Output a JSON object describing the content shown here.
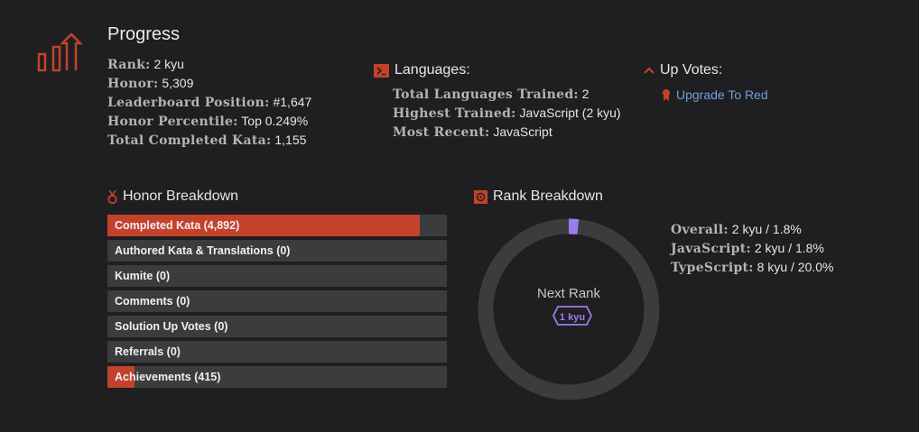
{
  "progress": {
    "title": "Progress",
    "rank_label": "Rank:",
    "rank_value": "2 kyu",
    "honor_label": "Honor:",
    "honor_value": "5,309",
    "leaderboard_label": "Leaderboard Position:",
    "leaderboard_value": "#1,647",
    "percentile_label": "Honor Percentile:",
    "percentile_value": "Top 0.249%",
    "completed_label": "Total Completed Kata:",
    "completed_value": "1,155"
  },
  "languages": {
    "title": "Languages:",
    "total_label": "Total Languages Trained:",
    "total_value": "2",
    "highest_label": "Highest Trained:",
    "highest_value": "JavaScript (2 kyu)",
    "recent_label": "Most Recent:",
    "recent_value": "JavaScript"
  },
  "upvotes": {
    "title": "Up Votes:",
    "link": "Upgrade To Red"
  },
  "honor_breakdown": {
    "title": "Honor Breakdown",
    "bars": [
      {
        "label": "Completed Kata (4,892)",
        "fraction": 0.92
      },
      {
        "label": "Authored Kata & Translations (0)",
        "fraction": 0
      },
      {
        "label": "Kumite (0)",
        "fraction": 0
      },
      {
        "label": "Comments (0)",
        "fraction": 0
      },
      {
        "label": "Solution Up Votes (0)",
        "fraction": 0
      },
      {
        "label": "Referrals (0)",
        "fraction": 0
      },
      {
        "label": "Achievements (415)",
        "fraction": 0.08
      }
    ]
  },
  "rank_breakdown": {
    "title": "Rank Breakdown",
    "ring_center": "Next Rank",
    "next_rank_badge": "1 kyu",
    "progress_fraction": 0.018,
    "ring_color": "#9b7cf0",
    "track_color": "#3b3c3e",
    "overall_label": "Overall:",
    "overall_value": "2 kyu / 1.8%",
    "js_label": "JavaScript:",
    "js_value": "2 kyu / 1.8%",
    "ts_label": "TypeScript:",
    "ts_value": "8 kyu / 20.0%"
  },
  "colors": {
    "accent": "#c4412c",
    "link": "#6f9fd8",
    "background": "#1f1f21"
  }
}
